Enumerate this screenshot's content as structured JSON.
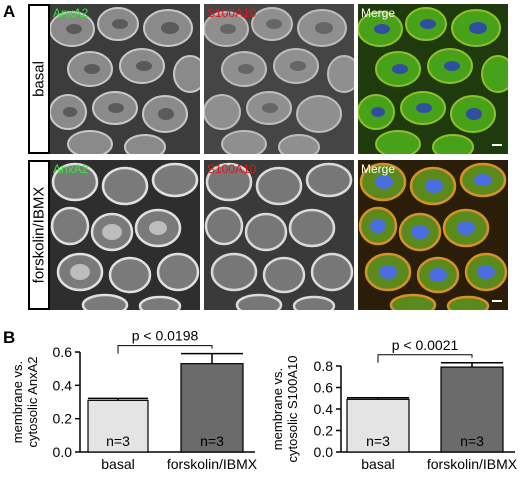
{
  "panel_a": {
    "letter": "A",
    "rows": [
      {
        "label": "basal"
      },
      {
        "label": "forskolin/IBMX"
      }
    ],
    "channels": {
      "anxa2": "AnxA2",
      "s100a10": "S100A10",
      "merge": "Merge"
    }
  },
  "panel_b": {
    "letter": "B"
  },
  "colors": {
    "bar_basal": "#e4e4e4",
    "bar_treated": "#6b6b6b",
    "label_green": "#3ee03e",
    "label_red": "#e01818"
  },
  "chart_data": [
    {
      "type": "bar",
      "categories": [
        "basal",
        "forskolin/IBMX"
      ],
      "values": [
        0.31,
        0.53
      ],
      "errors": [
        0.012,
        0.06
      ],
      "ylabel": "membrane vs.\ncytosolic AnxA2",
      "ylim": [
        0,
        0.6
      ],
      "yticks": [
        "0.0",
        "0.2",
        "0.4",
        "0.6"
      ],
      "bar_labels": [
        "n=3",
        "n=3"
      ],
      "significance": "p < 0.0198",
      "grid": false
    },
    {
      "type": "bar",
      "categories": [
        "basal",
        "forskolin/IBMX"
      ],
      "values": [
        0.49,
        0.79
      ],
      "errors": [
        0.015,
        0.04
      ],
      "ylabel": "membrane vs.\ncytosolic S100A10",
      "ylim": [
        0,
        0.8
      ],
      "yticks": [
        "0.0",
        "0.2",
        "0.4",
        "0.6",
        "0.8"
      ],
      "bar_labels": [
        "n=3",
        "n=3"
      ],
      "significance": "p < 0.0021",
      "grid": false
    }
  ]
}
